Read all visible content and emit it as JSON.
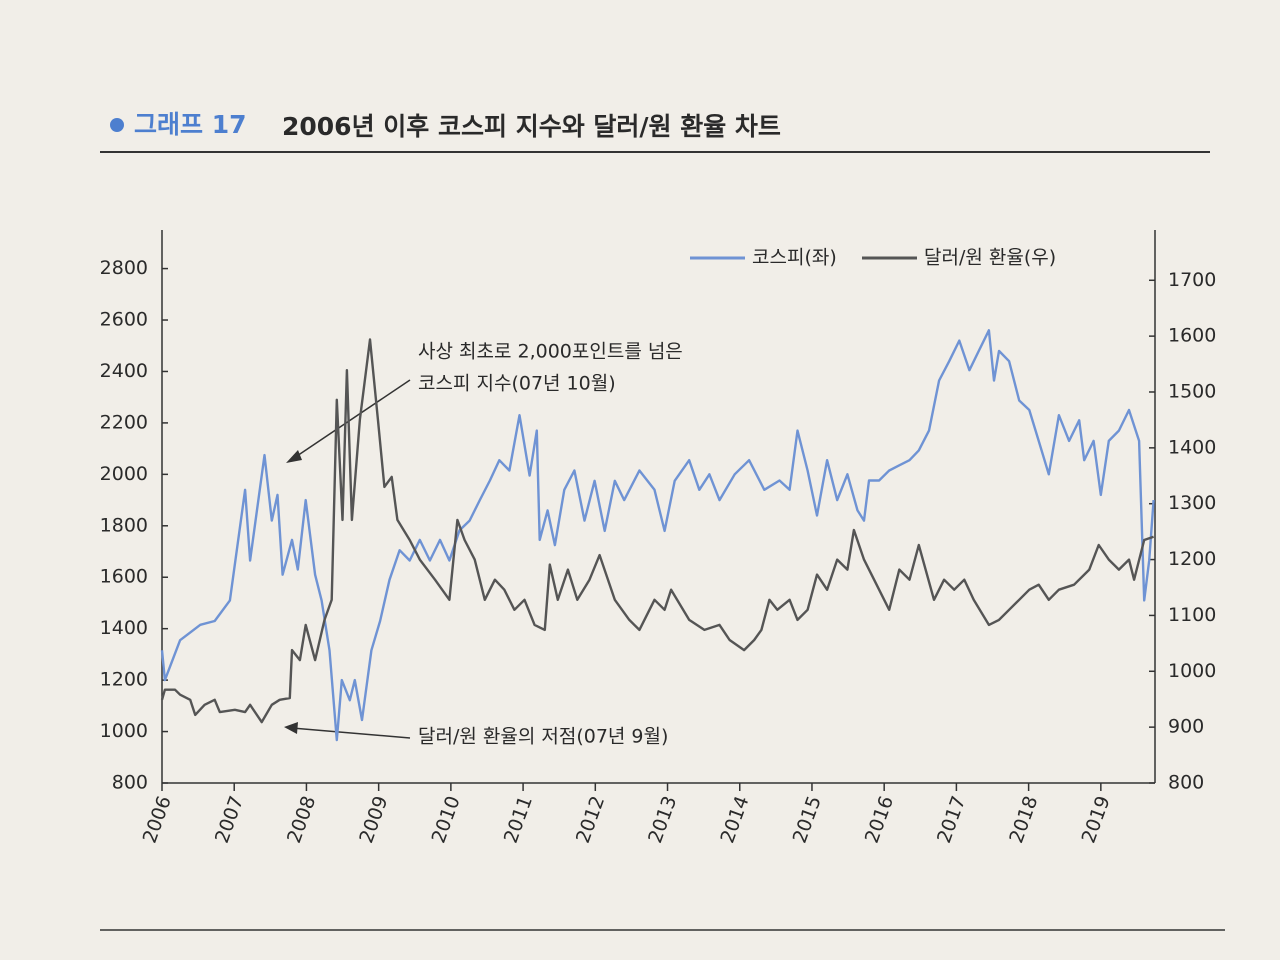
{
  "chart_data": {
    "type": "line",
    "label": "그래프 17",
    "title": "2006년 이후 코스피 지수와 달러/원 환율 차트",
    "annotations": [
      "사상 최초로 2,000포인트를 넘은",
      "코스피 지수(07년 10월)",
      "달러/원 환율의 저점(07년 9월)"
    ],
    "xlim": [
      2006,
      2019.75
    ],
    "xticks": [
      2006,
      2007,
      2008,
      2009,
      2010,
      2011,
      2012,
      2013,
      2014,
      2015,
      2016,
      2017,
      2018,
      2019
    ],
    "ylim": [
      800,
      2950
    ],
    "yticks": [
      800,
      1000,
      1200,
      1400,
      1600,
      1800,
      2000,
      2200,
      2400,
      2600,
      2800
    ],
    "y2lim": [
      800,
      1790
    ],
    "y2ticks": [
      800,
      900,
      1000,
      1100,
      1200,
      1300,
      1400,
      1500,
      1600,
      1700
    ],
    "grid": false,
    "legend": "top-right",
    "series": [
      {
        "name": "코스피(좌)",
        "color": "#6f93d4",
        "axis": "y",
        "x": [
          2006.0,
          2006.04,
          2006.25,
          2006.53,
          2006.73,
          2006.94,
          2007.15,
          2007.22,
          2007.42,
          2007.52,
          2007.6,
          2007.67,
          2007.8,
          2007.88,
          2007.99,
          2008.12,
          2008.21,
          2008.32,
          2008.42,
          2008.49,
          2008.6,
          2008.67,
          2008.77,
          2008.9,
          2009.02,
          2009.15,
          2009.29,
          2009.43,
          2009.57,
          2009.71,
          2009.85,
          2009.98,
          2010.12,
          2010.26,
          2010.4,
          2010.54,
          2010.67,
          2010.81,
          2010.95,
          2011.09,
          2011.19,
          2011.23,
          2011.34,
          2011.44,
          2011.57,
          2011.71,
          2011.85,
          2011.99,
          2012.13,
          2012.27,
          2012.4,
          2012.61,
          2012.82,
          2012.96,
          2013.1,
          2013.3,
          2013.44,
          2013.58,
          2013.72,
          2013.93,
          2014.13,
          2014.34,
          2014.55,
          2014.69,
          2014.8,
          2014.94,
          2015.07,
          2015.21,
          2015.35,
          2015.49,
          2015.63,
          2015.72,
          2015.79,
          2015.93,
          2016.07,
          2016.21,
          2016.35,
          2016.48,
          2016.62,
          2016.76,
          2016.9,
          2017.04,
          2017.18,
          2017.31,
          2017.45,
          2017.52,
          2017.59,
          2017.73,
          2017.87,
          2018.01,
          2018.14,
          2018.28,
          2018.42,
          2018.56,
          2018.7,
          2018.77,
          2018.9,
          2019.0,
          2019.11,
          2019.25,
          2019.39,
          2019.53,
          2019.6,
          2019.67,
          2019.73
        ],
        "values": [
          1316,
          1200,
          1355,
          1415,
          1430,
          1510,
          1940,
          1665,
          2075,
          1820,
          1920,
          1610,
          1745,
          1630,
          1900,
          1610,
          1510,
          1316,
          967,
          1200,
          1122,
          1200,
          1045,
          1316,
          1430,
          1590,
          1705,
          1665,
          1745,
          1665,
          1745,
          1665,
          1782,
          1820,
          1900,
          1976,
          2055,
          2015,
          2230,
          1995,
          2170,
          1745,
          1860,
          1725,
          1940,
          2015,
          1820,
          1975,
          1780,
          1975,
          1900,
          2015,
          1940,
          1780,
          1975,
          2055,
          1940,
          2000,
          1900,
          2000,
          2055,
          1940,
          1976,
          1940,
          2170,
          2015,
          1840,
          2055,
          1900,
          2000,
          1860,
          1820,
          1976,
          1976,
          2015,
          2035,
          2055,
          2093,
          2170,
          2365,
          2440,
          2520,
          2405,
          2480,
          2560,
          2365,
          2480,
          2440,
          2287,
          2250,
          2130,
          2000,
          2230,
          2130,
          2210,
          2055,
          2130,
          1920,
          2130,
          2170,
          2250,
          2130,
          1510,
          1665,
          1900
        ]
      },
      {
        "name": "달러/원 환율(우)",
        "color": "#555555",
        "axis": "y2",
        "x": [
          2006.0,
          2006.04,
          2006.18,
          2006.25,
          2006.39,
          2006.46,
          2006.59,
          2006.73,
          2006.8,
          2007.01,
          2007.15,
          2007.22,
          2007.38,
          2007.52,
          2007.63,
          2007.77,
          2007.8,
          2007.91,
          2007.99,
          2008.12,
          2008.25,
          2008.35,
          2008.42,
          2008.5,
          2008.56,
          2008.63,
          2008.74,
          2008.88,
          2008.99,
          2009.08,
          2009.18,
          2009.26,
          2009.43,
          2009.57,
          2009.78,
          2009.98,
          2010.09,
          2010.19,
          2010.33,
          2010.47,
          2010.61,
          2010.74,
          2010.88,
          2011.02,
          2011.16,
          2011.3,
          2011.37,
          2011.48,
          2011.62,
          2011.75,
          2011.92,
          2012.06,
          2012.27,
          2012.47,
          2012.61,
          2012.82,
          2012.96,
          2013.05,
          2013.3,
          2013.51,
          2013.72,
          2013.86,
          2014.06,
          2014.2,
          2014.3,
          2014.41,
          2014.52,
          2014.69,
          2014.8,
          2014.94,
          2015.07,
          2015.21,
          2015.35,
          2015.49,
          2015.58,
          2015.72,
          2015.86,
          2016.07,
          2016.21,
          2016.35,
          2016.48,
          2016.69,
          2016.83,
          2016.97,
          2017.11,
          2017.24,
          2017.45,
          2017.59,
          2017.73,
          2017.87,
          2018.01,
          2018.14,
          2018.28,
          2018.42,
          2018.63,
          2018.84,
          2018.97,
          2019.11,
          2019.25,
          2019.39,
          2019.46,
          2019.6,
          2019.73
        ],
        "values": [
          949,
          967,
          967,
          958,
          949,
          922,
          940,
          949,
          927,
          931,
          927,
          940,
          909,
          940,
          949,
          952,
          1038,
          1020,
          1083,
          1020,
          1092,
          1128,
          1486,
          1271,
          1539,
          1271,
          1451,
          1594,
          1451,
          1330,
          1348,
          1271,
          1235,
          1200,
          1164,
          1128,
          1271,
          1235,
          1200,
          1128,
          1164,
          1146,
          1110,
          1128,
          1083,
          1074,
          1191,
          1128,
          1182,
          1128,
          1164,
          1208,
          1128,
          1092,
          1074,
          1128,
          1110,
          1146,
          1092,
          1074,
          1083,
          1056,
          1038,
          1056,
          1074,
          1128,
          1110,
          1128,
          1092,
          1110,
          1173,
          1146,
          1200,
          1182,
          1253,
          1200,
          1164,
          1110,
          1182,
          1164,
          1226,
          1128,
          1164,
          1146,
          1164,
          1128,
          1083,
          1092,
          1110,
          1128,
          1146,
          1155,
          1128,
          1146,
          1155,
          1182,
          1226,
          1200,
          1182,
          1200,
          1164,
          1235,
          1241
        ]
      }
    ]
  }
}
